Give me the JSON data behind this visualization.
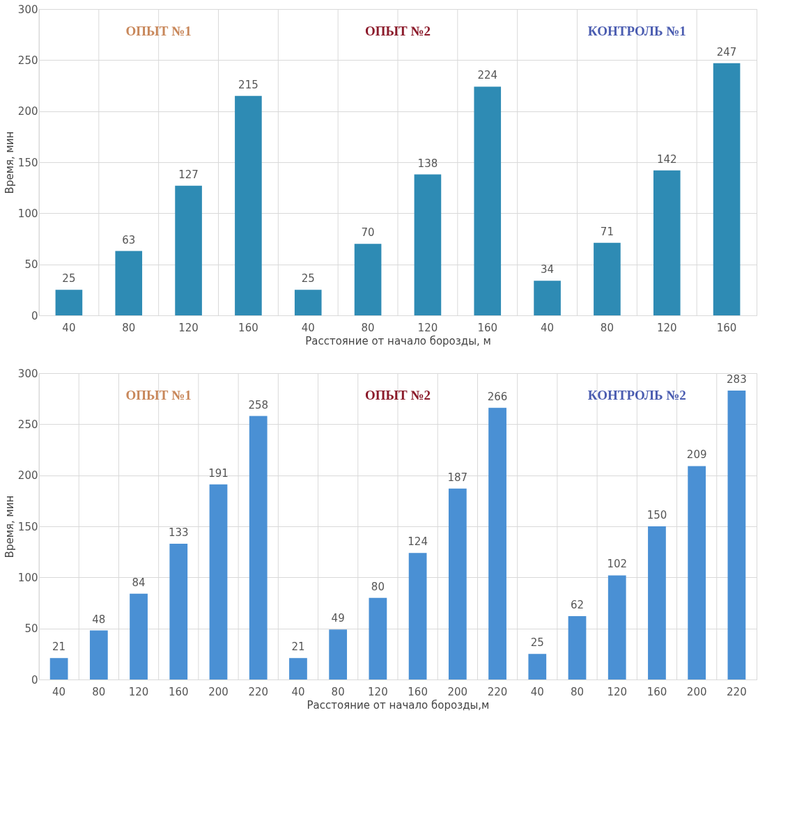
{
  "chart_data": [
    {
      "type": "bar",
      "categories": [
        "40",
        "80",
        "120",
        "160",
        "40",
        "80",
        "120",
        "160",
        "40",
        "80",
        "120",
        "160"
      ],
      "values": [
        25,
        63,
        127,
        215,
        25,
        70,
        138,
        224,
        34,
        71,
        142,
        247
      ],
      "color": "#2e8bb4",
      "xlabel": "Расстояние от начало борозды, м",
      "ylabel": "Время, мин",
      "ylim": [
        0,
        300
      ],
      "yticks": [
        0,
        50,
        100,
        150,
        200,
        250,
        300
      ],
      "grid": true,
      "data_labels": true,
      "annotations": [
        "ОПЫТ №1",
        "ОПЫТ №2",
        "КОНТРОЛЬ №1"
      ]
    },
    {
      "type": "bar",
      "categories": [
        "40",
        "80",
        "120",
        "160",
        "200",
        "220",
        "40",
        "80",
        "120",
        "160",
        "200",
        "220",
        "40",
        "80",
        "120",
        "160",
        "200",
        "220"
      ],
      "values": [
        21,
        48,
        84,
        133,
        191,
        258,
        21,
        49,
        80,
        124,
        187,
        266,
        25,
        62,
        102,
        150,
        209,
        283
      ],
      "color": "#4a90d4",
      "xlabel": "Расстояние от начало борозды,м",
      "ylabel": "Время, мин",
      "ylim": [
        0,
        300
      ],
      "yticks": [
        0,
        50,
        100,
        150,
        200,
        250,
        300
      ],
      "grid": true,
      "data_labels": true,
      "annotations": [
        "ОПЫТ №1",
        "ОПЫТ №2",
        "КОНТРОЛЬ №2"
      ]
    }
  ]
}
